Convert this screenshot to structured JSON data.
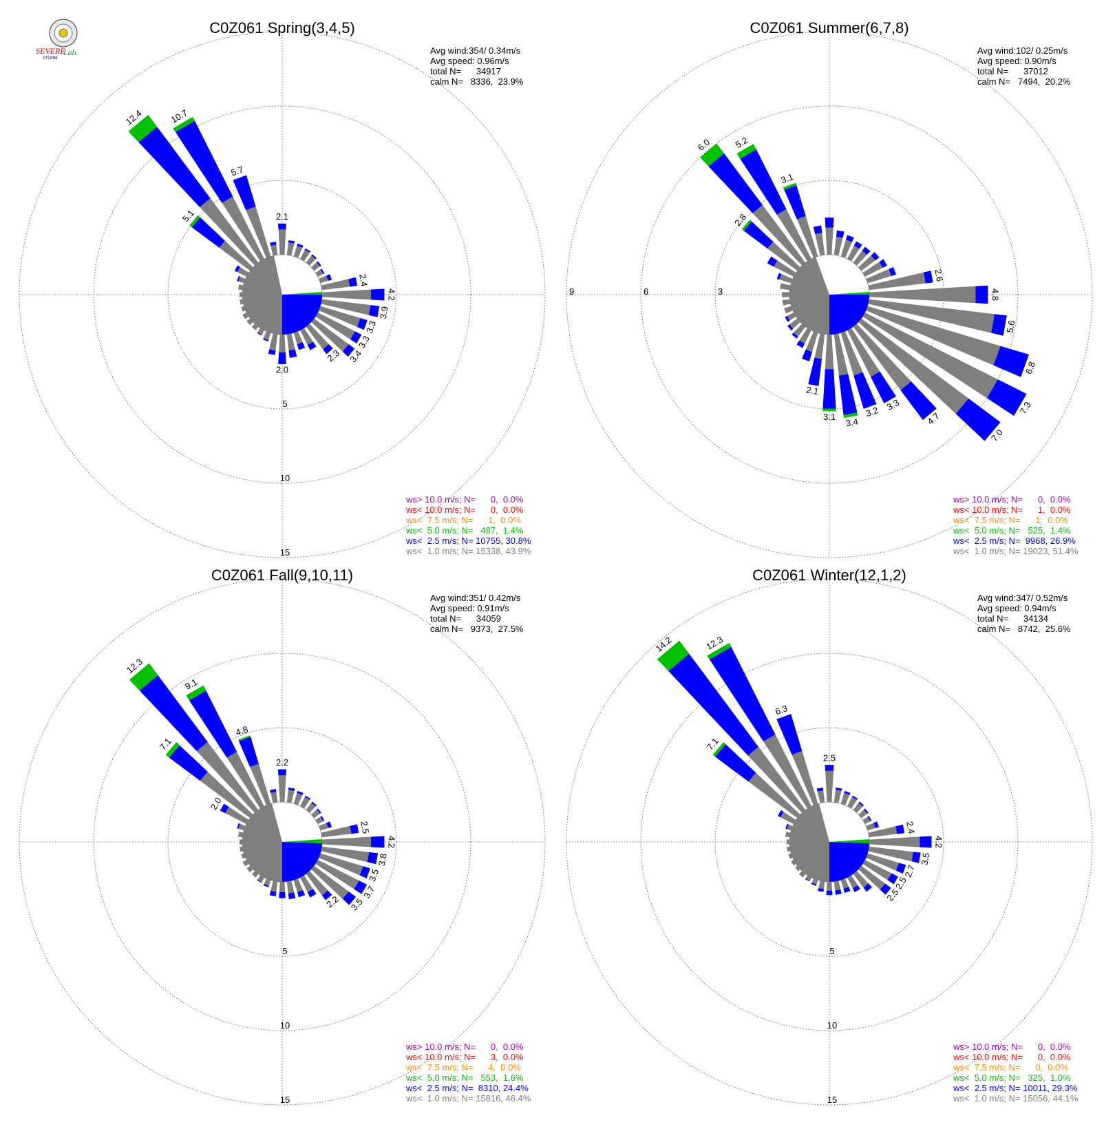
{
  "logo": {
    "text_a": "SEVERE",
    "text_b": "STORM",
    "text_c": "Lab."
  },
  "colors": {
    "calm": "#7f7f7f",
    "c_gray": "#7f7f7f",
    "c_blue": "#0000ff",
    "c_green": "#00c000",
    "c_orange": "#ff8c00",
    "c_red": "#ff0000",
    "c_purple": "#a000c8"
  },
  "chart_data": [
    {
      "type": "windrose",
      "title": "C0Z061 Spring(3,4,5)",
      "stats": [
        "Avg wind:354/ 0.34m/s",
        "Avg speed: 0.96m/s",
        "total N=      34917",
        "calm N=   8336,  23.9%"
      ],
      "ring_labels": [
        "5",
        "10",
        "15"
      ],
      "rmax": 15,
      "calm_pct": 23.9,
      "calm_fill": [
        [
          180,
          348,
          "gray"
        ],
        [
          90,
          180,
          "blue"
        ],
        [
          86,
          90,
          "green"
        ]
      ],
      "directions_deg": [
        0,
        10,
        20,
        30,
        40,
        50,
        60,
        70,
        80,
        90,
        100,
        110,
        120,
        130,
        140,
        150,
        160,
        170,
        180,
        190,
        200,
        210,
        220,
        230,
        240,
        250,
        260,
        270,
        280,
        290,
        300,
        310,
        320,
        330,
        340,
        350
      ],
      "totals": [
        2.1,
        1.0,
        0.9,
        0.8,
        0.7,
        0.6,
        0.5,
        0.8,
        2.4,
        4.2,
        3.9,
        3.3,
        3.3,
        3.4,
        2.3,
        1.5,
        1.2,
        1.6,
        2.0,
        1.4,
        0.6,
        0.4,
        0.3,
        0.3,
        0.3,
        0.2,
        0.2,
        0.2,
        0.3,
        0.5,
        0.9,
        5.1,
        12.4,
        10.7,
        5.7,
        0.9
      ],
      "blue": [
        0.4,
        0.15,
        0.15,
        0.1,
        0.1,
        0.1,
        0.1,
        0.25,
        0.5,
        0.9,
        0.6,
        0.5,
        0.5,
        0.5,
        0.4,
        0.4,
        0.4,
        0.5,
        0.8,
        0.3,
        0.1,
        0.05,
        0.0,
        0.0,
        0.0,
        0.0,
        0.0,
        0.0,
        0.0,
        0.1,
        0.2,
        2.3,
        6.0,
        5.7,
        2.2,
        0.2
      ],
      "green": [
        0,
        0,
        0,
        0,
        0,
        0,
        0,
        0,
        0,
        0,
        0,
        0,
        0,
        0,
        0,
        0,
        0,
        0,
        0,
        0,
        0,
        0,
        0,
        0,
        0,
        0,
        0,
        0,
        0,
        0,
        0,
        0.2,
        1.0,
        0.3,
        0,
        0
      ],
      "labeled_indices": [
        0,
        8,
        9,
        10,
        11,
        12,
        13,
        14,
        18,
        31,
        32,
        33,
        34
      ],
      "legend": [
        {
          "text": "ws> 10.0 m/s; N=      0,  0.0%",
          "color": "purple"
        },
        {
          "text": "ws< 10.0 m/s; N=      0,  0.0%",
          "color": "red"
        },
        {
          "text": "ws<  7.5 m/s; N=      1,  0.0%",
          "color": "orange"
        },
        {
          "text": "ws<  5.0 m/s; N=   487,  1.4%",
          "color": "green"
        },
        {
          "text": "ws<  2.5 m/s; N= 10755, 30.8%",
          "color": "blue"
        },
        {
          "text": "ws<  1.0 m/s; N= 15338, 43.9%",
          "color": "gray"
        }
      ]
    },
    {
      "type": "windrose",
      "title": "C0Z061 Summer(6,7,8)",
      "stats": [
        "Avg wind:102/ 0.25m/s",
        "Avg speed: 0.90m/s",
        "total N=      37012",
        "calm N=   7494,  20.2%"
      ],
      "ring_labels": [
        "3",
        "6",
        "9"
      ],
      "rmax": 9,
      "calm_pct": 20.2,
      "calm_fill": [
        [
          180,
          340,
          "gray"
        ],
        [
          90,
          180,
          "blue"
        ],
        [
          86,
          90,
          "green"
        ]
      ],
      "directions_deg": [
        0,
        10,
        20,
        30,
        40,
        50,
        60,
        70,
        80,
        90,
        100,
        110,
        120,
        130,
        140,
        150,
        160,
        170,
        180,
        190,
        200,
        210,
        220,
        230,
        240,
        250,
        260,
        270,
        280,
        290,
        300,
        310,
        320,
        330,
        340,
        350
      ],
      "totals": [
        1.5,
        1.0,
        0.9,
        0.8,
        0.8,
        0.9,
        1.0,
        1.2,
        2.6,
        4.8,
        5.6,
        6.8,
        7.3,
        7.0,
        4.7,
        3.3,
        3.2,
        3.4,
        3.1,
        2.1,
        1.2,
        0.8,
        0.6,
        0.5,
        0.4,
        0.3,
        0.3,
        0.3,
        0.4,
        0.6,
        1.2,
        2.8,
        6.0,
        5.2,
        3.1,
        1.2
      ],
      "blue": [
        0.4,
        0.25,
        0.2,
        0.2,
        0.2,
        0.2,
        0.2,
        0.2,
        0.3,
        0.5,
        0.5,
        1.2,
        1.3,
        1.6,
        1.5,
        1.2,
        1.4,
        1.6,
        1.6,
        1.1,
        0.4,
        0.2,
        0.1,
        0.1,
        0.1,
        0.0,
        0.0,
        0.0,
        0.0,
        0.1,
        0.3,
        1.2,
        2.6,
        2.7,
        1.3,
        0.3
      ],
      "green": [
        0,
        0,
        0,
        0,
        0,
        0,
        0,
        0,
        0,
        0,
        0,
        0,
        0,
        0,
        0,
        0,
        0,
        0.12,
        0.1,
        0,
        0,
        0,
        0,
        0,
        0,
        0,
        0,
        0,
        0,
        0,
        0,
        0.1,
        0.5,
        0.25,
        0.1,
        0
      ],
      "labeled_indices": [
        8,
        9,
        10,
        11,
        12,
        13,
        14,
        15,
        16,
        17,
        18,
        19,
        31,
        32,
        33,
        34
      ],
      "legend": [
        {
          "text": "ws> 10.0 m/s; N=      0,  0.0%",
          "color": "purple"
        },
        {
          "text": "ws< 10.0 m/s; N=      1,  0.0%",
          "color": "red"
        },
        {
          "text": "ws<  7.5 m/s; N=      1,  0.0%",
          "color": "orange"
        },
        {
          "text": "ws<  5.0 m/s; N=   525,  1.4%",
          "color": "green"
        },
        {
          "text": "ws<  2.5 m/s; N=  9968, 26.9%",
          "color": "blue"
        },
        {
          "text": "ws<  1.0 m/s; N= 19023, 51.4%",
          "color": "gray"
        }
      ]
    },
    {
      "type": "windrose",
      "title": "C0Z061 Fall(9,10,11)",
      "stats": [
        "Avg wind:351/ 0.42m/s",
        "Avg speed: 0.91m/s",
        "total N=      34059",
        "calm N=   9373,  27.5%"
      ],
      "ring_labels": [
        "5",
        "10",
        "15"
      ],
      "rmax": 15,
      "calm_pct": 27.5,
      "calm_fill": [
        [
          180,
          345,
          "gray"
        ],
        [
          92,
          180,
          "blue"
        ],
        [
          86,
          92,
          "green"
        ]
      ],
      "directions_deg": [
        0,
        10,
        20,
        30,
        40,
        50,
        60,
        70,
        80,
        90,
        100,
        110,
        120,
        130,
        140,
        150,
        160,
        170,
        180,
        190,
        200,
        210,
        220,
        230,
        240,
        250,
        260,
        270,
        280,
        290,
        300,
        310,
        320,
        330,
        340,
        350
      ],
      "totals": [
        2.2,
        1.0,
        0.9,
        0.8,
        0.7,
        0.6,
        0.5,
        0.8,
        2.5,
        4.2,
        3.8,
        3.5,
        3.7,
        3.5,
        2.2,
        1.5,
        1.2,
        1.2,
        1.1,
        1.0,
        0.5,
        0.4,
        0.3,
        0.3,
        0.3,
        0.2,
        0.2,
        0.2,
        0.3,
        0.5,
        2.0,
        7.1,
        12.3,
        9.1,
        4.8,
        0.9
      ],
      "blue": [
        0.4,
        0.15,
        0.15,
        0.1,
        0.1,
        0.1,
        0.1,
        0.25,
        0.5,
        0.9,
        0.6,
        0.5,
        0.6,
        0.6,
        0.4,
        0.4,
        0.35,
        0.4,
        0.4,
        0.3,
        0.1,
        0.05,
        0.0,
        0.0,
        0.0,
        0.0,
        0.0,
        0.0,
        0.0,
        0.1,
        0.4,
        2.6,
        5.6,
        4.6,
        1.9,
        0.2
      ],
      "green": [
        0,
        0,
        0,
        0,
        0,
        0,
        0,
        0,
        0,
        0,
        0,
        0,
        0,
        0,
        0,
        0,
        0,
        0,
        0,
        0,
        0,
        0,
        0,
        0,
        0,
        0,
        0,
        0,
        0,
        0,
        0,
        0.3,
        1.0,
        0.4,
        0.1,
        0
      ],
      "labeled_indices": [
        0,
        8,
        9,
        10,
        11,
        12,
        13,
        14,
        30,
        31,
        32,
        33,
        34
      ],
      "legend": [
        {
          "text": "ws> 10.0 m/s; N=      0,  0.0%",
          "color": "purple"
        },
        {
          "text": "ws< 10.0 m/s; N=      3,  0.0%",
          "color": "red"
        },
        {
          "text": "ws<  7.5 m/s; N=      4,  0.0%",
          "color": "orange"
        },
        {
          "text": "ws<  5.0 m/s; N=   553,  1.6%",
          "color": "green"
        },
        {
          "text": "ws<  2.5 m/s; N=  8310, 24.4%",
          "color": "blue"
        },
        {
          "text": "ws<  1.0 m/s; N= 15816, 46.4%",
          "color": "gray"
        }
      ]
    },
    {
      "type": "windrose",
      "title": "C0Z061 Winter(12,1,2)",
      "stats": [
        "Avg wind:347/ 0.52m/s",
        "Avg speed: 0.94m/s",
        "total N=      34134",
        "calm N=   8742,  25.6%"
      ],
      "ring_labels": [
        "5",
        "10",
        "15"
      ],
      "rmax": 15,
      "calm_pct": 25.6,
      "calm_fill": [
        [
          180,
          345,
          "gray"
        ],
        [
          92,
          180,
          "blue"
        ],
        [
          86,
          92,
          "green"
        ]
      ],
      "directions_deg": [
        0,
        10,
        20,
        30,
        40,
        50,
        60,
        70,
        80,
        90,
        100,
        110,
        120,
        130,
        140,
        150,
        160,
        170,
        180,
        190,
        200,
        210,
        220,
        230,
        240,
        250,
        260,
        270,
        280,
        290,
        300,
        310,
        320,
        330,
        340,
        350
      ],
      "totals": [
        2.5,
        1.0,
        0.9,
        0.8,
        0.7,
        0.6,
        0.5,
        0.8,
        2.4,
        4.2,
        3.5,
        2.7,
        2.5,
        2.5,
        1.5,
        1.1,
        0.9,
        0.9,
        0.9,
        0.7,
        0.4,
        0.3,
        0.3,
        0.2,
        0.2,
        0.2,
        0.2,
        0.2,
        0.3,
        0.4,
        1.2,
        7.1,
        14.2,
        12.3,
        6.3,
        1.0
      ],
      "blue": [
        0.4,
        0.15,
        0.15,
        0.1,
        0.1,
        0.1,
        0.1,
        0.25,
        0.5,
        0.8,
        0.5,
        0.5,
        0.5,
        0.5,
        0.35,
        0.3,
        0.3,
        0.3,
        0.3,
        0.2,
        0.1,
        0.05,
        0.0,
        0.0,
        0.0,
        0.0,
        0.0,
        0.0,
        0.0,
        0.1,
        0.2,
        2.8,
        7.8,
        6.6,
        2.6,
        0.2
      ],
      "green": [
        0,
        0,
        0,
        0,
        0,
        0,
        0,
        0,
        0,
        0,
        0,
        0,
        0,
        0,
        0,
        0,
        0,
        0,
        0,
        0,
        0,
        0,
        0,
        0,
        0,
        0,
        0,
        0,
        0,
        0,
        0,
        0.2,
        1.1,
        0.3,
        0,
        0
      ],
      "labeled_indices": [
        0,
        8,
        9,
        10,
        11,
        12,
        13,
        31,
        32,
        33,
        34
      ],
      "legend": [
        {
          "text": "ws> 10.0 m/s; N=      0,  0.0%",
          "color": "purple"
        },
        {
          "text": "ws< 10.0 m/s; N=      0,  0.0%",
          "color": "red"
        },
        {
          "text": "ws<  7.5 m/s; N=      0,  0.0%",
          "color": "orange"
        },
        {
          "text": "ws<  5.0 m/s; N=   325,  1.0%",
          "color": "green"
        },
        {
          "text": "ws<  2.5 m/s; N= 10011, 29.3%",
          "color": "blue"
        },
        {
          "text": "ws<  1.0 m/s; N= 15056, 44.1%",
          "color": "gray"
        }
      ]
    }
  ]
}
